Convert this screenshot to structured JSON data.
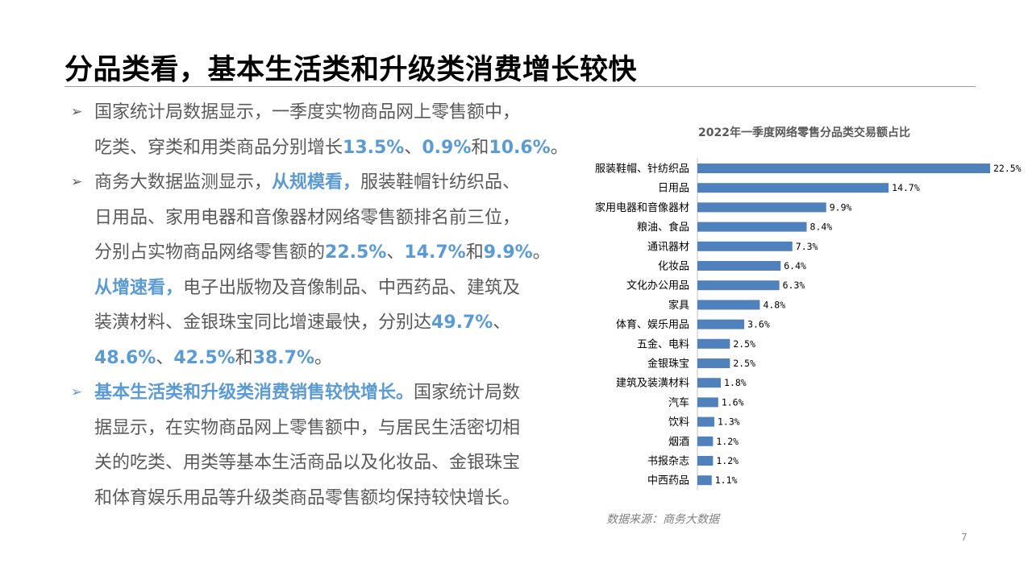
{
  "slide": {
    "title": "分品类看，基本生活类和升级类消费增长较快",
    "page_number": "7",
    "source": "数据来源：商务大数据"
  },
  "bullets": [
    {
      "marker": "➢",
      "lines": [
        [
          {
            "t": "国家统计局数据显示，一季度实物商品网上零售额中，"
          }
        ],
        [
          {
            "t": "吃类、穿类和用类商品分别增长"
          },
          {
            "t": "13.5%",
            "hl": true
          },
          {
            "t": "、"
          },
          {
            "t": "0.9%",
            "hl": true
          },
          {
            "t": "和"
          },
          {
            "t": "10.6%",
            "hl": true
          },
          {
            "t": "。"
          }
        ]
      ]
    },
    {
      "marker": "➢",
      "lines": [
        [
          {
            "t": "商务大数据监测显示，"
          },
          {
            "t": "从规模看，",
            "hl": true
          },
          {
            "t": "服装鞋帽针纺织品、"
          }
        ],
        [
          {
            "t": "日用品、家用电器和音像器材网络零售额排名前三位，"
          }
        ],
        [
          {
            "t": "分别占实物商品网络零售额的"
          },
          {
            "t": "22.5%",
            "hl": true
          },
          {
            "t": "、"
          },
          {
            "t": "14.7%",
            "hl": true
          },
          {
            "t": "和"
          },
          {
            "t": "9.9%",
            "hl": true
          },
          {
            "t": "。"
          }
        ],
        [
          {
            "t": "从增速看，",
            "hl": true
          },
          {
            "t": "电子出版物及音像制品、中西药品、建筑及"
          }
        ],
        [
          {
            "t": "装潢材料、金银珠宝同比增速最快，分别达"
          },
          {
            "t": "49.7%",
            "hl": true
          },
          {
            "t": "、"
          }
        ],
        [
          {
            "t": "48.6%",
            "hl": true
          },
          {
            "t": "、"
          },
          {
            "t": "42.5%",
            "hl": true
          },
          {
            "t": "和"
          },
          {
            "t": "38.7%",
            "hl": true
          },
          {
            "t": "。"
          }
        ]
      ]
    },
    {
      "marker": "➢",
      "accent": true,
      "lines": [
        [
          {
            "t": "基本生活类和升级类消费销售较快增长。",
            "hl": true
          },
          {
            "t": "国家统计局数"
          }
        ],
        [
          {
            "t": "据显示，在实物商品网上零售额中，与居民生活密切相"
          }
        ],
        [
          {
            "t": "关的吃类、用类等基本生活商品以及化妆品、金银珠宝"
          }
        ],
        [
          {
            "t": "和体育娱乐用品等升级类商品零售额均保持较快增长。"
          }
        ]
      ]
    }
  ],
  "chart_data": {
    "type": "bar",
    "orientation": "horizontal",
    "title": "2022年一季度网络零售分品类交易额占比",
    "categories": [
      "服装鞋帽、针纺织品",
      "日用品",
      "家用电器和音像器材",
      "粮油、食品",
      "通讯器材",
      "化妆品",
      "文化办公用品",
      "家具",
      "体育、娱乐用品",
      "五金、电料",
      "金银珠宝",
      "建筑及装潢材料",
      "汽车",
      "饮料",
      "烟酒",
      "书报杂志",
      "中西药品"
    ],
    "values": [
      22.5,
      14.7,
      9.9,
      8.4,
      7.3,
      6.4,
      6.3,
      4.8,
      3.6,
      2.5,
      2.5,
      1.8,
      1.6,
      1.3,
      1.2,
      1.2,
      1.1
    ],
    "data_labels": [
      "22.5%",
      "14.7%",
      "9.9%",
      "8.4%",
      "7.3%",
      "6.4%",
      "6.3%",
      "4.8%",
      "3.6%",
      "2.5%",
      "2.5%",
      "1.8%",
      "1.6%",
      "1.3%",
      "1.2%",
      "1.2%",
      "1.1%"
    ],
    "xlim": [
      0,
      22.5
    ],
    "bar_color": "#4f81bd",
    "grid": false,
    "legend": "none"
  },
  "colors": {
    "highlight": "#5b9bd5",
    "body_text": "#595959",
    "bar": "#4f81bd"
  }
}
